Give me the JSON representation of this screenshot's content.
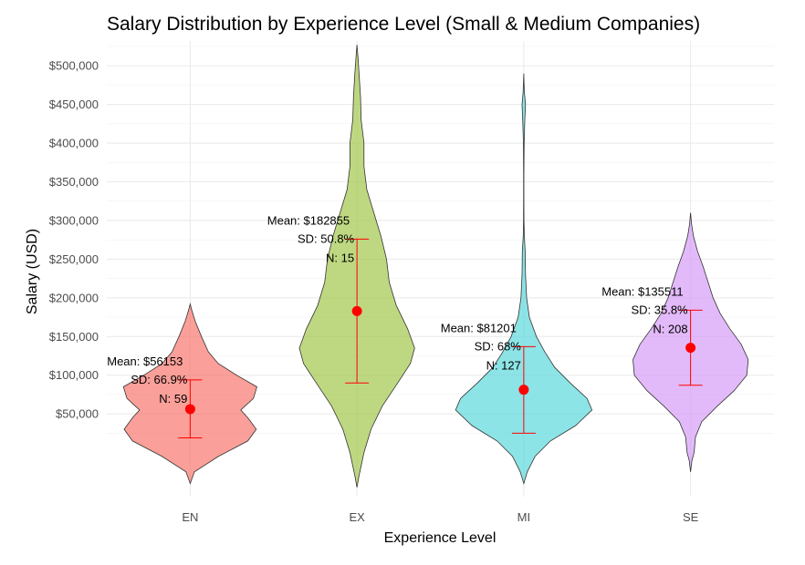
{
  "chart_data": {
    "type": "violin",
    "title": "Salary Distribution by Experience Level (Small & Medium Companies)",
    "xlabel": "Experience Level",
    "ylabel": "Salary (USD)",
    "categories": [
      "EN",
      "EX",
      "MI",
      "SE"
    ],
    "y_ticks": [
      50000,
      100000,
      150000,
      200000,
      250000,
      300000,
      350000,
      400000,
      450000,
      500000
    ],
    "y_tick_labels": [
      "$50,000",
      "$100,000",
      "$150,000",
      "$200,000",
      "$250,000",
      "$300,000",
      "$350,000",
      "$400,000",
      "$450,000",
      "$500,000"
    ],
    "ylim": [
      -57000,
      532000
    ],
    "grid": true,
    "legend": "none",
    "groups": [
      {
        "category": "EN",
        "color": "#F8766D",
        "mean": 56153,
        "error_low": 19000,
        "error_high": 94000,
        "mean_label": "Mean: $56153",
        "sd_label": "SD: 66.9%",
        "n_label": "N: 59",
        "density": [
          [
            -40000,
            0
          ],
          [
            -25000,
            0.06
          ],
          [
            -5000,
            0.4
          ],
          [
            15000,
            0.82
          ],
          [
            30000,
            0.94
          ],
          [
            45000,
            0.82
          ],
          [
            55000,
            0.72
          ],
          [
            70000,
            0.9
          ],
          [
            85000,
            0.95
          ],
          [
            100000,
            0.66
          ],
          [
            115000,
            0.4
          ],
          [
            130000,
            0.26
          ],
          [
            150000,
            0.16
          ],
          [
            170000,
            0.07
          ],
          [
            185000,
            0.02
          ],
          [
            192000,
            0
          ]
        ]
      },
      {
        "category": "EX",
        "color": "#A3C74D",
        "mean": 182855,
        "error_low": 90000,
        "error_high": 276000,
        "mean_label": "Mean: $182855",
        "sd_label": "SD: 50.8%",
        "n_label": "N: 15",
        "density": [
          [
            -45000,
            0
          ],
          [
            -30000,
            0.03
          ],
          [
            0,
            0.1
          ],
          [
            30000,
            0.2
          ],
          [
            60000,
            0.36
          ],
          [
            90000,
            0.58
          ],
          [
            115000,
            0.76
          ],
          [
            135000,
            0.82
          ],
          [
            160000,
            0.72
          ],
          [
            190000,
            0.56
          ],
          [
            220000,
            0.46
          ],
          [
            250000,
            0.42
          ],
          [
            280000,
            0.34
          ],
          [
            310000,
            0.24
          ],
          [
            340000,
            0.14
          ],
          [
            370000,
            0.1
          ],
          [
            400000,
            0.1
          ],
          [
            430000,
            0.06
          ],
          [
            460000,
            0.05
          ],
          [
            490000,
            0.03
          ],
          [
            510000,
            0.015
          ],
          [
            527000,
            0
          ]
        ]
      },
      {
        "category": "MI",
        "color": "#5DD8DB",
        "mean": 81201,
        "error_low": 25000,
        "error_high": 137000,
        "mean_label": "Mean: $81201",
        "sd_label": "SD: 68%",
        "n_label": "N: 127",
        "density": [
          [
            -40000,
            0
          ],
          [
            -25000,
            0.05
          ],
          [
            -5000,
            0.16
          ],
          [
            15000,
            0.38
          ],
          [
            35000,
            0.74
          ],
          [
            55000,
            0.97
          ],
          [
            70000,
            0.9
          ],
          [
            90000,
            0.66
          ],
          [
            110000,
            0.44
          ],
          [
            130000,
            0.3
          ],
          [
            150000,
            0.18
          ],
          [
            175000,
            0.08
          ],
          [
            200000,
            0.04
          ],
          [
            230000,
            0.025
          ],
          [
            260000,
            0.02
          ],
          [
            280000,
            0.008
          ],
          [
            300000,
            0.003
          ],
          [
            330000,
            0.002
          ],
          [
            360000,
            0.002
          ],
          [
            400000,
            0.005
          ],
          [
            430000,
            0.015
          ],
          [
            450000,
            0.025
          ],
          [
            465000,
            0.01
          ],
          [
            480000,
            0.003
          ],
          [
            490000,
            0
          ]
        ]
      },
      {
        "category": "SE",
        "color": "#D59DF7",
        "mean": 135511,
        "error_low": 87000,
        "error_high": 184000,
        "mean_label": "Mean: $135511",
        "sd_label": "SD: 35.8%",
        "n_label": "N: 208",
        "density": [
          [
            -25000,
            0
          ],
          [
            -10000,
            0.02
          ],
          [
            0,
            0.05
          ],
          [
            20000,
            0.07
          ],
          [
            40000,
            0.16
          ],
          [
            60000,
            0.38
          ],
          [
            80000,
            0.62
          ],
          [
            100000,
            0.8
          ],
          [
            120000,
            0.82
          ],
          [
            140000,
            0.72
          ],
          [
            160000,
            0.56
          ],
          [
            180000,
            0.42
          ],
          [
            200000,
            0.32
          ],
          [
            220000,
            0.25
          ],
          [
            240000,
            0.18
          ],
          [
            260000,
            0.1
          ],
          [
            280000,
            0.04
          ],
          [
            295000,
            0.015
          ],
          [
            310000,
            0
          ]
        ]
      }
    ]
  }
}
